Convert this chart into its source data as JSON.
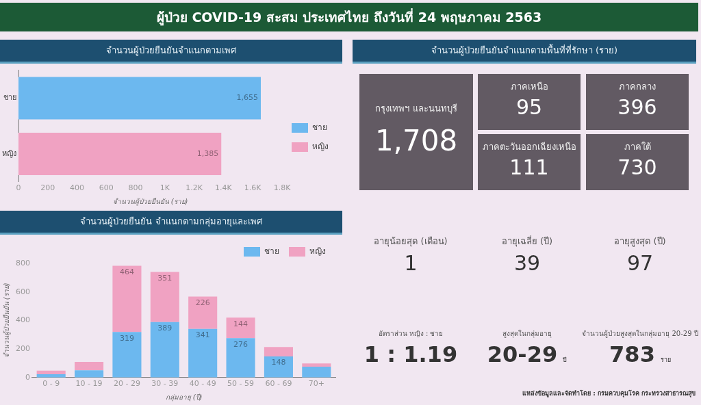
{
  "chart_data": [
    {
      "type": "other",
      "title": "ผู้ป่วย COVID-19 สะสม  ประเทศไทย  ถึงวันที่ 24 พฤษภาคม 2563"
    },
    {
      "type": "bar",
      "orientation": "horizontal",
      "title": "จำนวนผู้ป่วยยืนยันจำแนกตามเพศ",
      "categories": [
        "ชาย",
        "หญิง"
      ],
      "series": [
        {
          "name": "ชาย",
          "color": "#6cb8ef",
          "values": [
            1655,
            null
          ],
          "value_labels": [
            "1,655",
            null
          ]
        },
        {
          "name": "หญิง",
          "color": "#f0a2c2",
          "values": [
            null,
            1385
          ],
          "value_labels": [
            null,
            "1,385"
          ]
        }
      ],
      "xlim": [
        0,
        1800
      ],
      "xticks": [
        0,
        200,
        400,
        600,
        800,
        {
          "value": 1000,
          "label": "1K"
        },
        {
          "value": 1200,
          "label": "1.2K"
        },
        {
          "value": 1400,
          "label": "1.4K"
        },
        {
          "value": 1600,
          "label": "1.6K"
        },
        {
          "value": 1800,
          "label": "1.8K"
        }
      ],
      "xlabel": "จำนวนผู้ป่วยยืนยัน (ราย)",
      "legend": "right"
    },
    {
      "type": "other",
      "title": "จำนวนผู้ป่วยยืนยันจำแนกตามพื้นที่ที่รักษา (ราย)",
      "categories": [
        "กรุงเทพฯ และนนทบุรี",
        "ภาคเหนือ",
        "ภาคกลาง",
        "ภาคตะวันออกเฉียงเหนือ",
        "ภาคใต้"
      ],
      "value_labels": [
        "1,708",
        "95",
        "396",
        "111",
        "730"
      ],
      "color": "#625a63"
    },
    {
      "type": "bar",
      "stacked": true,
      "title": "จำนวนผู้ป่วยยืนยัน จำแนกตามกลุ่มอายุและเพศ",
      "categories": [
        "0 - 9",
        "10 - 19",
        "20 - 29",
        "30 - 39",
        "40 - 49",
        "50 - 59",
        "60 - 69",
        "70+"
      ],
      "series": [
        {
          "name": "ชาย",
          "color": "#6cb8ef",
          "values": [
            23,
            51,
            319,
            389,
            341,
            276,
            148,
            76
          ],
          "value_labels": [
            null,
            null,
            "319",
            "389",
            "341",
            "276",
            "148",
            null
          ]
        },
        {
          "name": "หญิง",
          "color": "#f0a2c2",
          "values": [
            25,
            58,
            464,
            351,
            226,
            144,
            66,
            22
          ],
          "value_labels": [
            null,
            null,
            "464",
            "351",
            "226",
            "144",
            null,
            null
          ]
        }
      ],
      "ylim": [
        0,
        800
      ],
      "yticks": [
        0,
        200,
        400,
        600,
        800
      ],
      "xlabel": "กลุ่มอายุ (ปี)",
      "ylabel": "จำนวนผู้ป่วยยืนยัน (ราย)",
      "legend": "top right"
    },
    {
      "type": "other",
      "categories": [
        "อายุน้อยสุด (เดือน)",
        "อายุเฉลี่ย (ปี)",
        "อายุสูงสุด (ปี)",
        "อัตราส่วน หญิง : ชาย",
        "สูงสุดในกลุ่มอายุ",
        "จำนวนผู้ป่วยสูงสุดในกลุ่มอายุ 20-29 ปี"
      ],
      "value_labels": [
        "1",
        "39",
        "97",
        "1 : 1.19",
        "20-29",
        "783"
      ],
      "annotations": [
        null,
        null,
        null,
        null,
        "ปี",
        "ราย",
        "แหล่งข้อมูลและจัดทำโดย : กรมควบคุมโรค กระทรวงสาธารณสุข"
      ]
    }
  ]
}
